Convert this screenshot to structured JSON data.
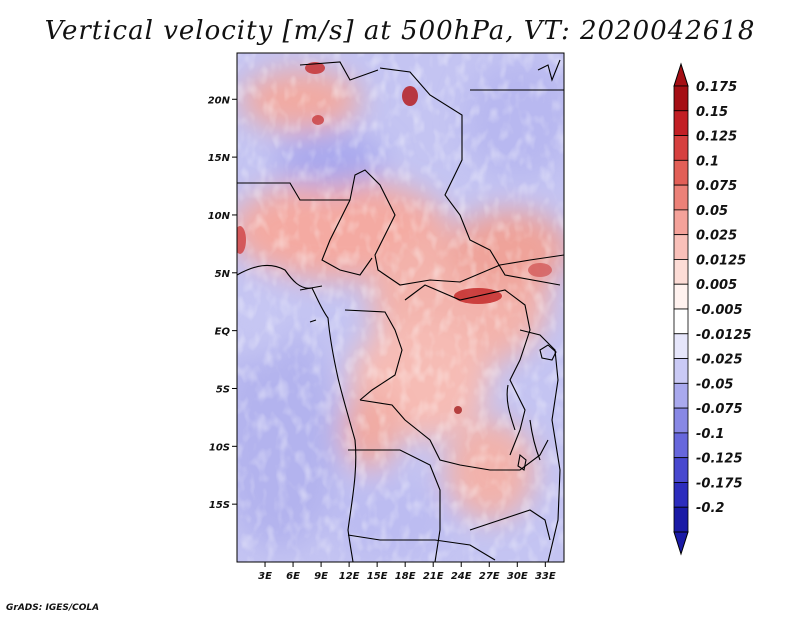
{
  "title": "Vertical velocity [m/s] at 500hPa, VT: 2020042618",
  "credit": "GrADS: IGES/COLA",
  "chart_data": {
    "type": "heatmap",
    "title": "Vertical velocity [m/s] at 500hPa, VT: 2020042618",
    "variable": "Vertical velocity",
    "units": "m/s",
    "level": "500hPa",
    "valid_time": "2020042618",
    "xlabel": "",
    "ylabel": "",
    "x_range": [
      0,
      35
    ],
    "y_range": [
      -20,
      24
    ],
    "x_ticks": [
      {
        "value": 3,
        "label": "3E"
      },
      {
        "value": 6,
        "label": "6E"
      },
      {
        "value": 9,
        "label": "9E"
      },
      {
        "value": 12,
        "label": "12E"
      },
      {
        "value": 15,
        "label": "15E"
      },
      {
        "value": 18,
        "label": "18E"
      },
      {
        "value": 21,
        "label": "21E"
      },
      {
        "value": 24,
        "label": "24E"
      },
      {
        "value": 27,
        "label": "27E"
      },
      {
        "value": 30,
        "label": "30E"
      },
      {
        "value": 33,
        "label": "33E"
      }
    ],
    "y_ticks": [
      {
        "value": 20,
        "label": "20N"
      },
      {
        "value": 15,
        "label": "15N"
      },
      {
        "value": 10,
        "label": "10N"
      },
      {
        "value": 5,
        "label": "5N"
      },
      {
        "value": 0,
        "label": "EQ"
      },
      {
        "value": -5,
        "label": "5S"
      },
      {
        "value": -10,
        "label": "10S"
      },
      {
        "value": -15,
        "label": "15S"
      }
    ],
    "colorbar": {
      "orientation": "vertical",
      "placement": "right",
      "levels": [
        {
          "label": "0.175",
          "color": "#a50f15"
        },
        {
          "label": "0.15",
          "color": "#c21f25"
        },
        {
          "label": "0.125",
          "color": "#d6403f"
        },
        {
          "label": "0.1",
          "color": "#e25f57"
        },
        {
          "label": "0.075",
          "color": "#ec8178"
        },
        {
          "label": "0.05",
          "color": "#f4a29a"
        },
        {
          "label": "0.025",
          "color": "#f9c0b9"
        },
        {
          "label": "0.0125",
          "color": "#fcdcd6"
        },
        {
          "label": "0.005",
          "color": "#fff2ef"
        },
        {
          "label": "-0.005",
          "color": "#ffffff"
        },
        {
          "label": "-0.0125",
          "color": "#e6e6fb"
        },
        {
          "label": "-0.025",
          "color": "#cacaf5"
        },
        {
          "label": "-0.05",
          "color": "#a9a9ee"
        },
        {
          "label": "-0.075",
          "color": "#8888e5"
        },
        {
          "label": "-0.1",
          "color": "#6767dc"
        },
        {
          "label": "-0.125",
          "color": "#4848cf"
        },
        {
          "label": "-0.175",
          "color": "#2c2cbd"
        },
        {
          "label": "-0.2",
          "color": "#1a1aa6"
        }
      ],
      "top_extension_color": "#a50f15",
      "bottom_extension_color": "#1a1aa6"
    },
    "field_description": "Mostly weak ascent (red, 0.005-0.05 m/s) over the central African interior and Congo basin, weak descent (blue, -0.005 to -0.05 m/s) over the Atlantic and southern Africa, with small strong-ascent cores (>0.1 m/s) near 6N 27E, 23N 12E and 21N 18E."
  }
}
